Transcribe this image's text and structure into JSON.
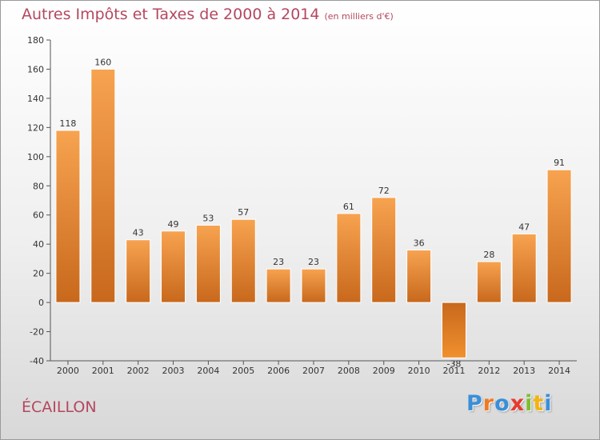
{
  "header": {
    "title": "Autres Impôts et Taxes de 2000 à 2014",
    "unit_note": "(en milliers d'€)"
  },
  "footer": {
    "commune": "ÉCAILLON",
    "logo": {
      "letters": [
        "P",
        "r",
        "o",
        "x",
        "i",
        "t",
        "i"
      ],
      "colors": [
        "#3a8fd8",
        "#f07a22",
        "#3a8fd8",
        "#e63c2f",
        "#7cbf2f",
        "#f4b40f",
        "#3a8fd8"
      ]
    }
  },
  "chart_data": {
    "type": "bar",
    "categories": [
      "2000",
      "2001",
      "2002",
      "2003",
      "2004",
      "2005",
      "2006",
      "2007",
      "2008",
      "2009",
      "2010",
      "2011",
      "2012",
      "2013",
      "2014"
    ],
    "values": [
      118,
      160,
      43,
      49,
      53,
      57,
      23,
      23,
      61,
      72,
      36,
      -38,
      28,
      47,
      91
    ],
    "labels": [
      "118",
      "160",
      "43",
      "49",
      "53",
      "57",
      "23",
      "23",
      "61",
      "72",
      "36",
      "-38",
      "28",
      "47",
      "91"
    ],
    "title": "Autres Impôts et Taxes de 2000 à 2014",
    "ylim": [
      -40,
      180
    ],
    "yticks": [
      -40,
      -20,
      0,
      20,
      40,
      60,
      80,
      100,
      120,
      140,
      160,
      180
    ],
    "grid": false,
    "bar_color": "#f0902f",
    "bar_color_dark": "#c9671a"
  }
}
